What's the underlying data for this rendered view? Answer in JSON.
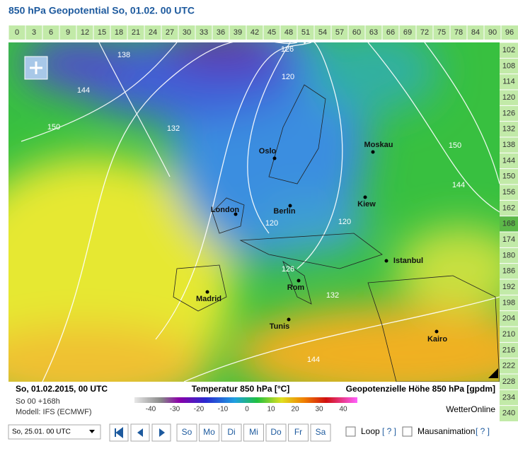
{
  "header": {
    "title": "850 hPa Geopotential So, 01.02. 00 UTC"
  },
  "hours_top": [
    0,
    3,
    6,
    9,
    12,
    15,
    18,
    21,
    24,
    27,
    30,
    33,
    36,
    39,
    42,
    45,
    48,
    51,
    54,
    57,
    60,
    63,
    66,
    69,
    72,
    75,
    78,
    84,
    90,
    96
  ],
  "hours_right": [
    102,
    108,
    114,
    120,
    126,
    132,
    138,
    144,
    150,
    156,
    162,
    168,
    174,
    180,
    186,
    192,
    198,
    204,
    210,
    216,
    222,
    228,
    234,
    240
  ],
  "active_hour": 168,
  "map": {
    "cities": [
      "Oslo",
      "Moskau",
      "London",
      "Berlin",
      "Kiew",
      "Istanbul",
      "Madrid",
      "Rom",
      "Tunis",
      "Kairo"
    ],
    "contour_labels": [
      138,
      126,
      144,
      120,
      132,
      150,
      150,
      144,
      120,
      120,
      126,
      132,
      144
    ]
  },
  "legend": {
    "date": "So, 01.02.2015, 00 UTC",
    "run": "So 00 +168h",
    "model": "Modell: IFS (ECMWF)",
    "temp_title": "Temperatur 850 hPa [°C]",
    "geo_title": "Geopotenzielle Höhe 850 hPa [gpdm]",
    "scale_ticks": [
      -40,
      -30,
      -20,
      -10,
      0,
      10,
      20,
      30,
      40
    ],
    "brand": "WetterOnline"
  },
  "controls": {
    "select": "So, 25.01. 00 UTC",
    "days": [
      "So",
      "Mo",
      "Di",
      "Mi",
      "Do",
      "Fr",
      "Sa"
    ],
    "loop": "Loop",
    "help1": "[ ? ]",
    "mouse": "Mausanimation",
    "help2": "[ ? ]"
  }
}
